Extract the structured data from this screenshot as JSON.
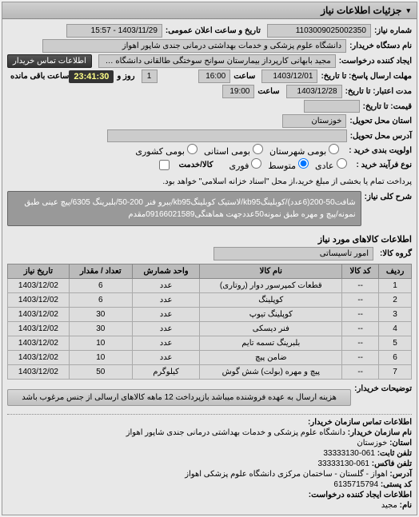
{
  "panel": {
    "title": "جزئیات اطلاعات نیاز"
  },
  "form": {
    "req_no_lbl": "شماره نیاز:",
    "req_no": "1103009025002350",
    "pub_dt_lbl": "تاریخ و ساعت اعلان عمومی:",
    "pub_dt": "1403/11/29 - 15:57",
    "buyer_org_lbl": "نام دستگاه خریدار:",
    "buyer_org": "دانشگاه علوم پزشکی و خدمات بهداشتی درمانی جندی شاپور اهواز",
    "requester_lbl": "ایجاد کننده درخواست:",
    "requester": "مجید بابهانی کارپرداز بیمارستان سوانح سوختگی طالقانی دانشگاه علوم پزشکی",
    "contact_btn": "اطلاعات تماس خریدار",
    "deadline_lbl": "مهلت ارسال پاسخ: تا تاریخ:",
    "deadline_date": "1403/12/01",
    "time_lbl": "ساعت",
    "deadline_time": "16:00",
    "remain_lbl": "ساعت باقی مانده",
    "remain_day": "1",
    "remain_day_lbl": "روز و",
    "remain_time": "23:41:30",
    "valid_lbl": "مدت اعتبار: تا تاریخ:",
    "valid_date": "1403/12/28",
    "valid_time": "19:00",
    "price_lbl": "قیمت: تا تاریخ:",
    "deliver_loc_lbl": "استان محل تحویل:",
    "deliver_loc": "خوزستان",
    "deliver_addr_lbl": "آدرس محل تحویل:",
    "priority_lbl": "اولویت بندی خرید :",
    "priority_opts": {
      "a": "بومی شهرستان",
      "b": "بومی استانی",
      "c": "بومی کشوری"
    },
    "commit_lbl": "نوع فرآیند خرید :",
    "commit_opts": {
      "a": "عادی",
      "b": "متوسط",
      "c": "فوری"
    },
    "pay_lbl": "کالا/خدمت",
    "pay_note": "پرداخت تمام یا بخشی از مبلغ خرید،از محل \"اسناد خزانه اسلامی\" خواهد بود.",
    "desc_lbl": "شرح کلی نیاز:",
    "desc": "شافت50-200(6عدد)/کوبلینگkb95/لاستیک کوبلینگkb95/یبرو فنر 200-50/بلبرینگ 6305/پیچ عینی طبق نمونه/پیچ و مهره طبق نمونه50عددجهت هماهنگی09166021589مقدم",
    "goods_title": "اطلاعات کالاهای مورد نیاز",
    "goods_group_lbl": "گروه کالا:",
    "goods_group": "امور تاسیساتی",
    "table": {
      "headers": [
        "ردیف",
        "کد کالا",
        "نام کالا",
        "واحد شمارش",
        "تعداد / مقدار",
        "تاریخ نیاز"
      ],
      "rows": [
        [
          "1",
          "--",
          "قطعات کمپرسور دوار (روتاری)",
          "عدد",
          "6",
          "1403/12/02"
        ],
        [
          "2",
          "--",
          "کوپلینگ",
          "عدد",
          "6",
          "1403/12/02"
        ],
        [
          "3",
          "--",
          "کوپلینگ تیوپ",
          "عدد",
          "30",
          "1403/12/02"
        ],
        [
          "4",
          "--",
          "فنر دیسکی",
          "عدد",
          "30",
          "1403/12/02"
        ],
        [
          "5",
          "--",
          "بلبرینگ تسمه تایم",
          "عدد",
          "10",
          "1403/12/02"
        ],
        [
          "6",
          "--",
          "ضامن پیچ",
          "عدد",
          "10",
          "1403/12/02"
        ],
        [
          "7",
          "--",
          "پیچ و مهره (بولت) شش گوش",
          "کیلوگرم",
          "50",
          "1403/12/02"
        ]
      ]
    },
    "buyer_note_lbl": "توضیحات خریدار:",
    "buyer_note": "هزینه ارسال به عهده فروشنده میباشد بازپرداخت 12 ماهه کالاهای ارسالی از جنس مرغوب باشد",
    "contact_title": "اطلاعات تماس سازمان خریدار:",
    "c_org_lbl": "نام سازمان خریدار:",
    "c_org": "دانشگاه علوم پزشکی و خدمات بهداشتی درمانی جندی شاپور اهواز",
    "c_prov_lbl": "استان:",
    "c_prov": "خوزستان",
    "c_tel_lbl": "تلفن ثابت:",
    "c_tel": "061-33333130",
    "c_fax_lbl": "تلفن فاکس:",
    "c_fax": "061-33333130",
    "c_addr_lbl": "آدرس:",
    "c_addr": "اهواز - گلستان - ساختمان مرکزی دانشگاه علوم پزشکی اهواز",
    "c_post_lbl": "کد پستی:",
    "c_post": "6135715794",
    "c_creator_lbl": "اطلاعات ایجاد کننده درخواست:",
    "c_name_lbl": "نام:",
    "c_name": "مجید"
  },
  "colors": {
    "header_grad_a": "#d0d0d0",
    "header_grad_b": "#b8b8b8",
    "box": "#ccc",
    "desc": "#999"
  }
}
